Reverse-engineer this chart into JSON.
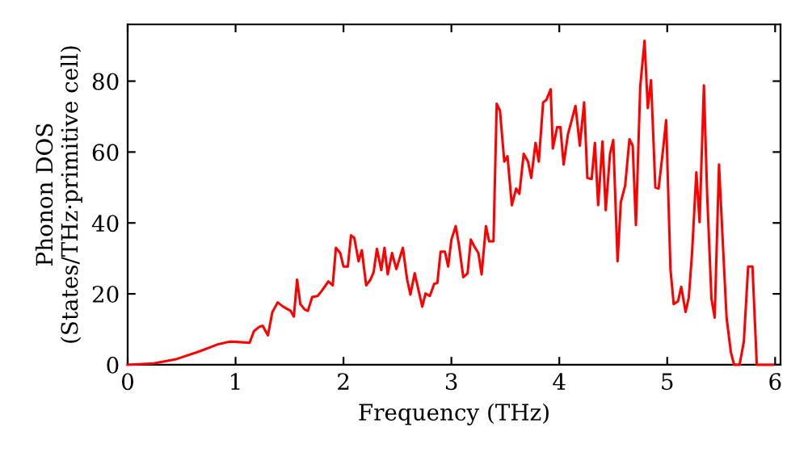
{
  "chart_data": {
    "type": "line",
    "xlabel": "Frequency (THz)",
    "ylabel": "Phonon DOS\n(States/THz·primitive cell)",
    "xlim": [
      0,
      6.05
    ],
    "ylim": [
      0,
      96
    ],
    "xticks": [
      0,
      1,
      2,
      3,
      4,
      5,
      6
    ],
    "yticks": [
      0,
      20,
      40,
      60,
      80
    ],
    "grid": false,
    "legend": false,
    "marker": "none",
    "line_style": "solid",
    "series": [
      {
        "color": "#ff0000",
        "x": [
          0,
          0.24,
          0.44,
          0.64,
          0.84,
          0.94,
          0.99,
          1.13,
          1.17,
          1.22,
          1.25,
          1.3,
          1.34,
          1.39,
          1.44,
          1.51,
          1.54,
          1.57,
          1.6,
          1.64,
          1.67,
          1.71,
          1.76,
          1.8,
          1.86,
          1.9,
          1.93,
          1.97,
          2.0,
          2.04,
          2.07,
          2.1,
          2.14,
          2.17,
          2.21,
          2.25,
          2.28,
          2.31,
          2.35,
          2.38,
          2.41,
          2.45,
          2.49,
          2.55,
          2.59,
          2.62,
          2.66,
          2.73,
          2.76,
          2.8,
          2.84,
          2.87,
          2.9,
          2.94,
          2.97,
          3.0,
          3.04,
          3.07,
          3.11,
          3.15,
          3.18,
          3.21,
          3.25,
          3.28,
          3.32,
          3.35,
          3.39,
          3.42,
          3.45,
          3.49,
          3.52,
          3.56,
          3.6,
          3.63,
          3.67,
          3.71,
          3.74,
          3.78,
          3.81,
          3.85,
          3.88,
          3.92,
          3.94,
          3.98,
          4.01,
          4.04,
          4.08,
          4.15,
          4.19,
          4.23,
          4.26,
          4.3,
          4.33,
          4.36,
          4.4,
          4.43,
          4.47,
          4.5,
          4.54,
          4.57,
          4.61,
          4.65,
          4.68,
          4.71,
          4.75,
          4.79,
          4.82,
          4.85,
          4.89,
          4.92,
          4.96,
          4.99,
          5.03,
          5.06,
          5.1,
          5.13,
          5.17,
          5.2,
          5.23,
          5.27,
          5.3,
          5.34,
          5.37,
          5.41,
          5.44,
          5.48,
          5.51,
          5.55,
          5.59,
          5.62,
          5.67,
          5.71,
          5.75,
          5.79,
          5.83,
          5.98
        ],
        "values": [
          0,
          0.4,
          1.5,
          3.5,
          5.8,
          6.5,
          6.5,
          6.2,
          9.5,
          10.7,
          11,
          8.3,
          14.8,
          17.6,
          16.4,
          15.2,
          13.6,
          24,
          17.1,
          15.6,
          15.2,
          19.1,
          19.4,
          20.9,
          23.5,
          22.4,
          33,
          31.5,
          27.7,
          27.7,
          36.5,
          35.8,
          29.2,
          32.3,
          22.4,
          24,
          26.2,
          32.7,
          26.7,
          33,
          25.5,
          31.5,
          27,
          33,
          24,
          19.8,
          25.8,
          16.4,
          20.1,
          19.4,
          22.8,
          23.1,
          31.9,
          31.9,
          27.7,
          35.3,
          39.1,
          33.8,
          24.7,
          25.8,
          35.3,
          33.5,
          31.5,
          25.5,
          39.1,
          34.8,
          34.8,
          73.6,
          71.7,
          57.3,
          58.8,
          45,
          49.7,
          48.2,
          59.5,
          57.3,
          52.7,
          62.6,
          57.3,
          74,
          74.7,
          77.7,
          61,
          67,
          67,
          56.5,
          65,
          73,
          61.8,
          74,
          52.7,
          52.4,
          62.6,
          45,
          63,
          43.6,
          59.5,
          63.4,
          29.2,
          45.9,
          50.5,
          63.6,
          61.8,
          39.4,
          78.5,
          91.4,
          72.4,
          80.3,
          50,
          49.7,
          60.3,
          69,
          27,
          17.1,
          17.9,
          22,
          14.9,
          19,
          31.5,
          54.3,
          40.2,
          78.8,
          48,
          18.6,
          13.3,
          56.5,
          37.6,
          13.3,
          3.5,
          0,
          0,
          6.5,
          27.7,
          27.7,
          0,
          0
        ]
      }
    ]
  }
}
